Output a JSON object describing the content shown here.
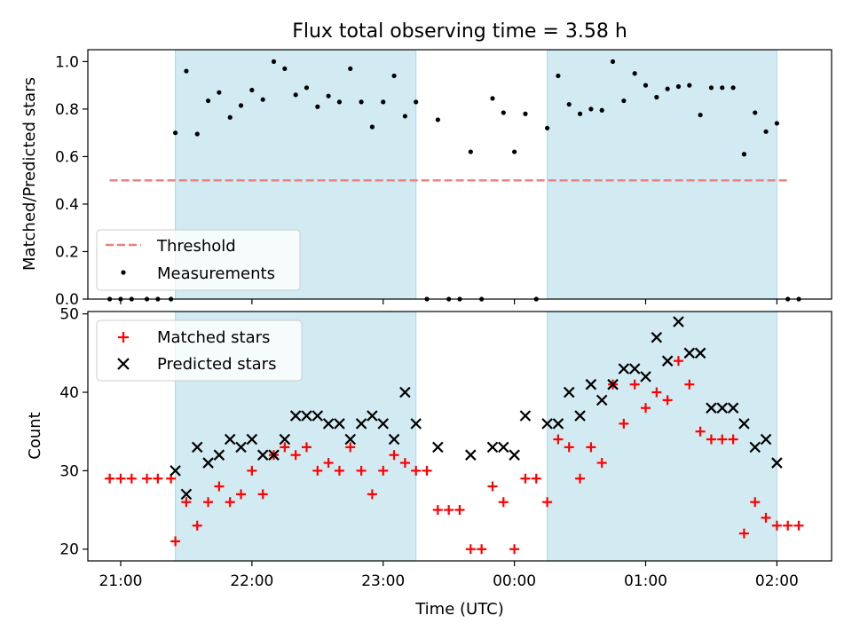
{
  "chart_data": [
    {
      "type": "scatter",
      "title": "Flux total observing time = 3.58 h",
      "xlabel": "",
      "ylabel": "Matched/Predicted stars",
      "ylim": [
        0.0,
        1.05
      ],
      "yticks": [
        "0.0",
        "0.2",
        "0.4",
        "0.6",
        "0.8",
        "1.0"
      ],
      "shaded_intervals": [
        [
          "21:25",
          "23:15"
        ],
        [
          "00:15",
          "02:00"
        ]
      ],
      "threshold": {
        "name": "Threshold",
        "value": 0.5,
        "x_range": [
          "20:55",
          "02:05"
        ],
        "color": "#f08080"
      },
      "series": [
        {
          "name": "Measurements",
          "color": "#000000",
          "points": [
            [
              "20:55",
              0.0
            ],
            [
              "21:00",
              0.0
            ],
            [
              "21:05",
              0.0
            ],
            [
              "21:12",
              0.0
            ],
            [
              "21:17",
              0.0
            ],
            [
              "21:23",
              0.0
            ],
            [
              "21:25",
              0.7
            ],
            [
              "21:30",
              0.96
            ],
            [
              "21:35",
              0.695
            ],
            [
              "21:40",
              0.835
            ],
            [
              "21:45",
              0.87
            ],
            [
              "21:50",
              0.765
            ],
            [
              "21:55",
              0.815
            ],
            [
              "22:00",
              0.88
            ],
            [
              "22:05",
              0.84
            ],
            [
              "22:10",
              1.0
            ],
            [
              "22:15",
              0.97
            ],
            [
              "22:20",
              0.86
            ],
            [
              "22:25",
              0.89
            ],
            [
              "22:30",
              0.81
            ],
            [
              "22:35",
              0.855
            ],
            [
              "22:40",
              0.83
            ],
            [
              "22:45",
              0.97
            ],
            [
              "22:50",
              0.83
            ],
            [
              "22:55",
              0.725
            ],
            [
              "23:00",
              0.83
            ],
            [
              "23:05",
              0.94
            ],
            [
              "23:10",
              0.77
            ],
            [
              "23:15",
              0.83
            ],
            [
              "23:20",
              0.0
            ],
            [
              "23:25",
              0.755
            ],
            [
              "23:30",
              0.0
            ],
            [
              "23:35",
              0.0
            ],
            [
              "23:40",
              0.62
            ],
            [
              "23:45",
              0.0
            ],
            [
              "23:50",
              0.845
            ],
            [
              "23:55",
              0.785
            ],
            [
              "00:00",
              0.62
            ],
            [
              "00:05",
              0.78
            ],
            [
              "00:10",
              0.0
            ],
            [
              "00:15",
              0.72
            ],
            [
              "00:20",
              0.94
            ],
            [
              "00:25",
              0.82
            ],
            [
              "00:30",
              0.78
            ],
            [
              "00:35",
              0.8
            ],
            [
              "00:40",
              0.795
            ],
            [
              "00:45",
              1.0
            ],
            [
              "00:50",
              0.835
            ],
            [
              "00:55",
              0.95
            ],
            [
              "01:00",
              0.9
            ],
            [
              "01:05",
              0.85
            ],
            [
              "01:10",
              0.885
            ],
            [
              "01:15",
              0.895
            ],
            [
              "01:20",
              0.9
            ],
            [
              "01:25",
              0.775
            ],
            [
              "01:30",
              0.89
            ],
            [
              "01:35",
              0.89
            ],
            [
              "01:40",
              0.89
            ],
            [
              "01:45",
              0.61
            ],
            [
              "01:50",
              0.785
            ],
            [
              "01:55",
              0.705
            ],
            [
              "02:00",
              0.74
            ],
            [
              "02:05",
              0.0
            ],
            [
              "02:10",
              0.0
            ]
          ]
        }
      ],
      "legend": {
        "position": "lower-left"
      },
      "grid": false
    },
    {
      "type": "scatter",
      "title": "",
      "xlabel": "Time (UTC)",
      "ylabel": "Count",
      "xlim": [
        "20:45",
        "02:25"
      ],
      "xticks": [
        "21:00",
        "22:00",
        "23:00",
        "00:00",
        "01:00",
        "02:00"
      ],
      "ylim": [
        18.5,
        50.3
      ],
      "yticks": [
        "20",
        "30",
        "40",
        "50"
      ],
      "shaded_intervals": [
        [
          "21:25",
          "23:15"
        ],
        [
          "00:15",
          "02:00"
        ]
      ],
      "series": [
        {
          "name": "Matched stars",
          "marker": "plus",
          "color": "#ff0000",
          "points": [
            [
              "20:55",
              29
            ],
            [
              "21:00",
              29
            ],
            [
              "21:05",
              29
            ],
            [
              "21:12",
              29
            ],
            [
              "21:17",
              29
            ],
            [
              "21:23",
              29
            ],
            [
              "21:25",
              21
            ],
            [
              "21:30",
              26
            ],
            [
              "21:35",
              23
            ],
            [
              "21:40",
              26
            ],
            [
              "21:45",
              28
            ],
            [
              "21:50",
              26
            ],
            [
              "21:55",
              27
            ],
            [
              "22:00",
              30
            ],
            [
              "22:05",
              27
            ],
            [
              "22:10",
              32
            ],
            [
              "22:15",
              33
            ],
            [
              "22:20",
              32
            ],
            [
              "22:25",
              33
            ],
            [
              "22:30",
              30
            ],
            [
              "22:35",
              31
            ],
            [
              "22:40",
              30
            ],
            [
              "22:45",
              33
            ],
            [
              "22:50",
              30
            ],
            [
              "22:55",
              27
            ],
            [
              "23:00",
              30
            ],
            [
              "23:05",
              32
            ],
            [
              "23:10",
              31
            ],
            [
              "23:15",
              30
            ],
            [
              "23:20",
              30
            ],
            [
              "23:25",
              25
            ],
            [
              "23:30",
              25
            ],
            [
              "23:35",
              25
            ],
            [
              "23:40",
              20
            ],
            [
              "23:45",
              20
            ],
            [
              "23:50",
              28
            ],
            [
              "23:55",
              26
            ],
            [
              "00:00",
              20
            ],
            [
              "00:05",
              29
            ],
            [
              "00:10",
              29
            ],
            [
              "00:15",
              26
            ],
            [
              "00:20",
              34
            ],
            [
              "00:25",
              33
            ],
            [
              "00:30",
              29
            ],
            [
              "00:35",
              33
            ],
            [
              "00:40",
              31
            ],
            [
              "00:45",
              41
            ],
            [
              "00:50",
              36
            ],
            [
              "00:55",
              41
            ],
            [
              "01:00",
              38
            ],
            [
              "01:05",
              40
            ],
            [
              "01:10",
              39
            ],
            [
              "01:15",
              44
            ],
            [
              "01:20",
              41
            ],
            [
              "01:25",
              35
            ],
            [
              "01:30",
              34
            ],
            [
              "01:35",
              34
            ],
            [
              "01:40",
              34
            ],
            [
              "01:45",
              22
            ],
            [
              "01:50",
              26
            ],
            [
              "01:55",
              24
            ],
            [
              "02:00",
              23
            ],
            [
              "02:05",
              23
            ],
            [
              "02:10",
              23
            ]
          ]
        },
        {
          "name": "Predicted stars",
          "marker": "x",
          "color": "#000000",
          "points": [
            [
              "21:25",
              30
            ],
            [
              "21:30",
              27
            ],
            [
              "21:35",
              33
            ],
            [
              "21:40",
              31
            ],
            [
              "21:45",
              32
            ],
            [
              "21:50",
              34
            ],
            [
              "21:55",
              33
            ],
            [
              "22:00",
              34
            ],
            [
              "22:05",
              32
            ],
            [
              "22:10",
              32
            ],
            [
              "22:15",
              34
            ],
            [
              "22:20",
              37
            ],
            [
              "22:25",
              37
            ],
            [
              "22:30",
              37
            ],
            [
              "22:35",
              36
            ],
            [
              "22:40",
              36
            ],
            [
              "22:45",
              34
            ],
            [
              "22:50",
              36
            ],
            [
              "22:55",
              37
            ],
            [
              "23:00",
              36
            ],
            [
              "23:05",
              34
            ],
            [
              "23:10",
              40
            ],
            [
              "23:15",
              36
            ],
            [
              "23:25",
              33
            ],
            [
              "23:40",
              32
            ],
            [
              "23:50",
              33
            ],
            [
              "23:55",
              33
            ],
            [
              "00:00",
              32
            ],
            [
              "00:05",
              37
            ],
            [
              "00:15",
              36
            ],
            [
              "00:20",
              36
            ],
            [
              "00:25",
              40
            ],
            [
              "00:30",
              37
            ],
            [
              "00:35",
              41
            ],
            [
              "00:40",
              39
            ],
            [
              "00:45",
              41
            ],
            [
              "00:50",
              43
            ],
            [
              "00:55",
              43
            ],
            [
              "01:00",
              42
            ],
            [
              "01:05",
              47
            ],
            [
              "01:10",
              44
            ],
            [
              "01:15",
              49
            ],
            [
              "01:20",
              45
            ],
            [
              "01:25",
              45
            ],
            [
              "01:30",
              38
            ],
            [
              "01:35",
              38
            ],
            [
              "01:40",
              38
            ],
            [
              "01:45",
              36
            ],
            [
              "01:50",
              33
            ],
            [
              "01:55",
              34
            ],
            [
              "02:00",
              31
            ]
          ]
        }
      ],
      "legend": {
        "position": "top-left"
      },
      "grid": false
    }
  ],
  "colors": {
    "shade": "#add8e6"
  }
}
